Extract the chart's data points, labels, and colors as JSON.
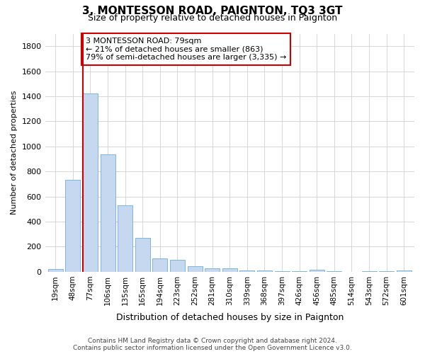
{
  "title": "3, MONTESSON ROAD, PAIGNTON, TQ3 3GT",
  "subtitle": "Size of property relative to detached houses in Paignton",
  "xlabel": "Distribution of detached houses by size in Paignton",
  "ylabel": "Number of detached properties",
  "footer_line1": "Contains HM Land Registry data © Crown copyright and database right 2024.",
  "footer_line2": "Contains public sector information licensed under the Open Government Licence v3.0.",
  "bar_labels": [
    "19sqm",
    "48sqm",
    "77sqm",
    "106sqm",
    "135sqm",
    "165sqm",
    "194sqm",
    "223sqm",
    "252sqm",
    "281sqm",
    "310sqm",
    "339sqm",
    "368sqm",
    "397sqm",
    "426sqm",
    "456sqm",
    "485sqm",
    "514sqm",
    "543sqm",
    "572sqm",
    "601sqm"
  ],
  "bar_values": [
    22,
    735,
    1425,
    935,
    530,
    270,
    105,
    93,
    47,
    27,
    25,
    12,
    10,
    6,
    3,
    14,
    3,
    2,
    3,
    3,
    12
  ],
  "bar_color": "#C5D8F0",
  "bar_edgecolor": "#6BAED6",
  "ylim": [
    0,
    1900
  ],
  "yticks": [
    0,
    200,
    400,
    600,
    800,
    1000,
    1200,
    1400,
    1600,
    1800
  ],
  "property_bar_index": 2,
  "vline_color": "#CC0000",
  "annotation_text": "3 MONTESSON ROAD: 79sqm\n← 21% of detached houses are smaller (863)\n79% of semi-detached houses are larger (3,335) →",
  "annotation_box_color": "#CC0000",
  "bg_color": "#FFFFFF",
  "grid_color": "#D0D0D0",
  "title_fontsize": 11,
  "subtitle_fontsize": 9,
  "ylabel_fontsize": 8,
  "xlabel_fontsize": 9,
  "tick_fontsize": 8,
  "xtick_fontsize": 7.5,
  "footer_fontsize": 6.5,
  "annot_fontsize": 8
}
